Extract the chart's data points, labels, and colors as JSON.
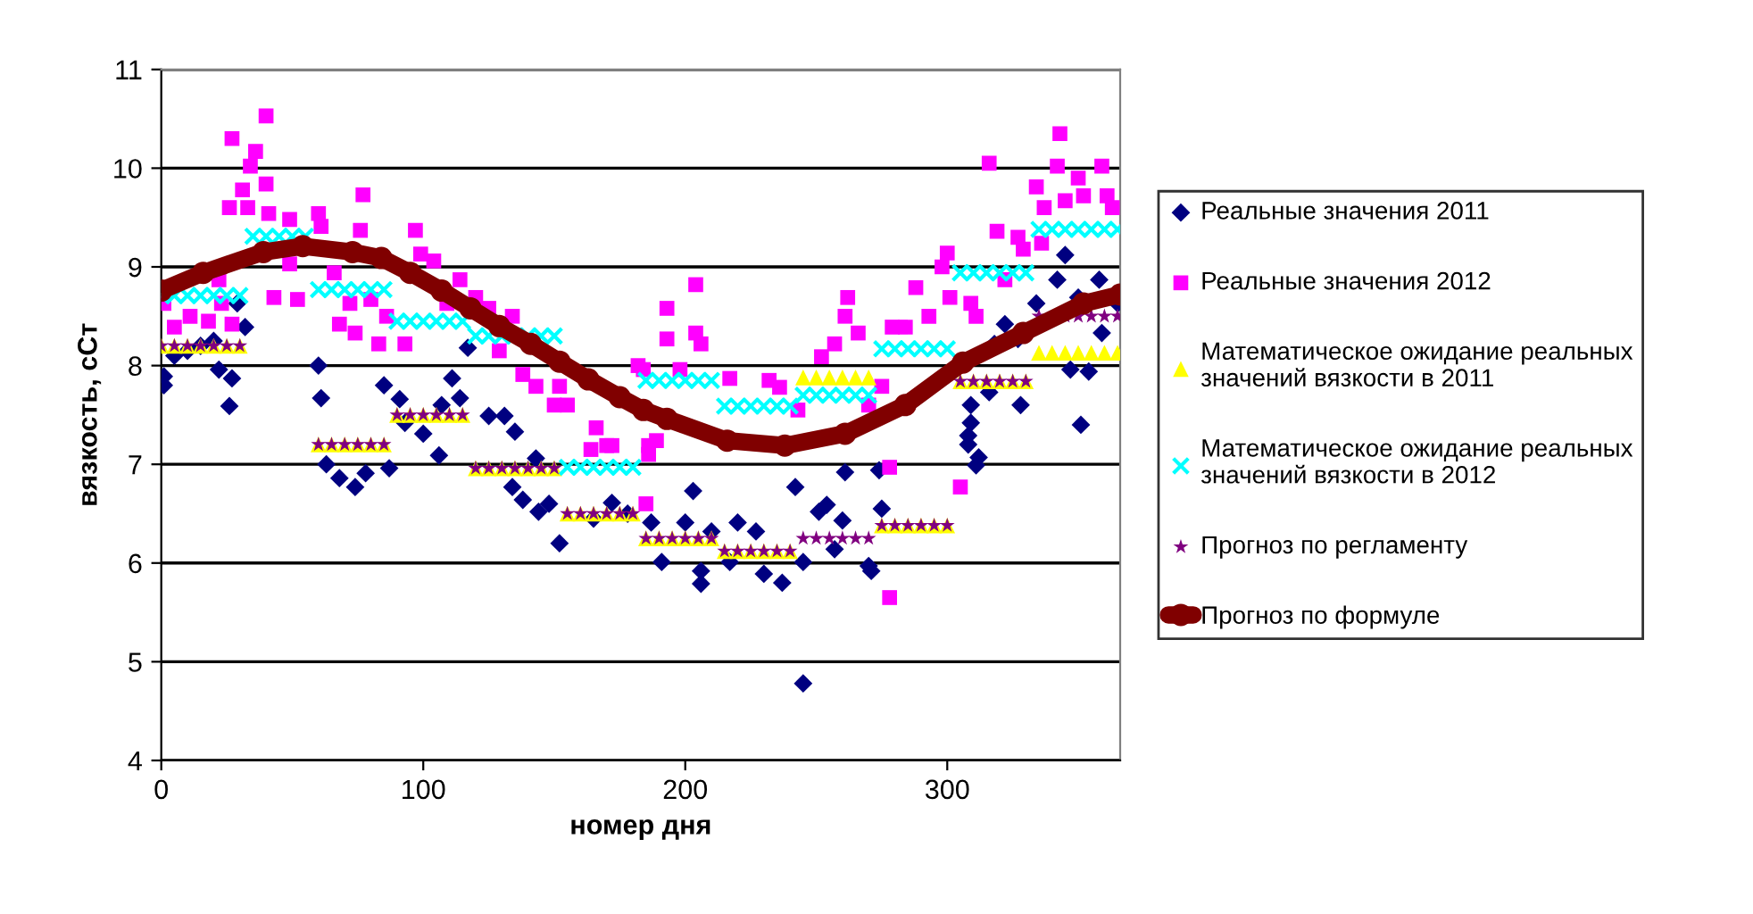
{
  "chart_data": {
    "type": "scatter",
    "xlabel": "номер дня",
    "ylabel": "вязкость, сСт",
    "xlim": [
      0,
      366
    ],
    "ylim": [
      4,
      11
    ],
    "xticks": [
      0,
      100,
      200,
      300
    ],
    "yticks": [
      4,
      5,
      6,
      7,
      8,
      9,
      10,
      11
    ],
    "grid": "y",
    "legend": "right",
    "x": [
      0,
      5,
      10,
      15,
      20,
      25,
      30,
      35,
      40,
      45,
      50,
      55,
      60,
      65,
      70,
      75,
      80,
      85,
      90,
      95,
      100,
      105,
      110,
      115,
      120,
      125,
      130,
      135,
      140,
      145,
      150,
      155,
      160,
      165,
      170,
      175,
      180,
      185,
      190,
      195,
      200,
      205,
      210,
      215,
      220,
      225,
      230,
      235,
      240,
      245,
      250,
      255,
      260,
      265,
      270,
      275,
      280,
      285,
      290,
      295,
      300,
      305,
      310,
      315,
      320,
      325,
      330,
      335,
      340,
      345,
      350,
      355,
      360,
      365
    ],
    "series": [
      {
        "name": "Реальные значения 2011",
        "color": "#000080",
        "marker": "diamond",
        "x": [
          1,
          1,
          5,
          10,
          15,
          20,
          22,
          26,
          27,
          29,
          32,
          60,
          61,
          63,
          68,
          74,
          78,
          85,
          87,
          91,
          93,
          100,
          106,
          107,
          111,
          114,
          117,
          125,
          131,
          134,
          135,
          138,
          143,
          144,
          148,
          152,
          165,
          172,
          178,
          187,
          191,
          200,
          203,
          206,
          206,
          210,
          217,
          220,
          227,
          230,
          237,
          242,
          245,
          245,
          251,
          254,
          257,
          260,
          261,
          270,
          271,
          274,
          275,
          308,
          308,
          309,
          309,
          311,
          312,
          316,
          318,
          322,
          327,
          328,
          334,
          342,
          345,
          347,
          350,
          351,
          354,
          358,
          359,
          365
        ],
        "values": [
          7.89,
          7.8,
          8.1,
          8.15,
          8.2,
          8.25,
          7.96,
          7.59,
          7.87,
          8.63,
          8.39,
          8.0,
          7.67,
          7.0,
          6.86,
          6.77,
          6.91,
          7.8,
          6.96,
          7.66,
          7.42,
          7.31,
          7.09,
          7.6,
          7.87,
          7.67,
          8.18,
          7.49,
          7.49,
          6.77,
          7.33,
          6.64,
          7.06,
          6.52,
          6.6,
          6.2,
          6.45,
          6.61,
          6.5,
          6.41,
          6.01,
          6.41,
          6.73,
          5.92,
          5.79,
          6.32,
          6.01,
          6.41,
          6.32,
          5.89,
          5.8,
          6.77,
          6.01,
          4.78,
          6.52,
          6.59,
          6.14,
          6.43,
          6.92,
          5.97,
          5.92,
          6.94,
          6.55,
          7.29,
          7.2,
          7.42,
          7.6,
          6.99,
          7.07,
          7.73,
          8.22,
          8.42,
          8.27,
          7.6,
          8.63,
          8.87,
          9.12,
          7.96,
          8.69,
          7.4,
          7.94,
          8.87,
          8.33,
          8.63
        ]
      },
      {
        "name": "Реальные значения 2012",
        "color": "#ff00ff",
        "marker": "square",
        "x": [
          1,
          5,
          11,
          18,
          22,
          23,
          26,
          27,
          27,
          31,
          33,
          34,
          36,
          40,
          40,
          41,
          43,
          49,
          49,
          52,
          60,
          61,
          66,
          68,
          72,
          74,
          76,
          77,
          80,
          83,
          86,
          93,
          97,
          99,
          104,
          109,
          114,
          120,
          125,
          129,
          134,
          138,
          143,
          150,
          152,
          155,
          164,
          166,
          170,
          172,
          182,
          184,
          185,
          186,
          186,
          189,
          193,
          193,
          198,
          204,
          204,
          206,
          217,
          232,
          236,
          243,
          252,
          257,
          261,
          262,
          266,
          270,
          275,
          278,
          278,
          279,
          284,
          288,
          293,
          298,
          300,
          301,
          305,
          309,
          311,
          316,
          319,
          322,
          327,
          329,
          334,
          336,
          337,
          342,
          343,
          345,
          350,
          352,
          359,
          361,
          363
        ],
        "values": [
          8.63,
          8.39,
          8.5,
          8.45,
          8.87,
          8.63,
          9.6,
          10.3,
          8.42,
          9.78,
          9.6,
          10.02,
          10.17,
          10.53,
          9.84,
          9.54,
          8.69,
          9.48,
          9.03,
          8.67,
          9.54,
          9.41,
          8.94,
          8.42,
          8.63,
          8.33,
          9.37,
          9.73,
          8.67,
          8.22,
          8.5,
          8.22,
          9.37,
          9.13,
          9.06,
          8.63,
          8.87,
          8.69,
          8.58,
          8.15,
          8.5,
          7.91,
          7.79,
          7.6,
          7.79,
          7.6,
          7.15,
          7.37,
          7.19,
          7.19,
          8.0,
          7.96,
          6.6,
          7.19,
          7.1,
          7.24,
          8.27,
          8.58,
          7.96,
          8.82,
          8.33,
          8.22,
          7.87,
          7.85,
          7.78,
          7.55,
          8.09,
          8.22,
          8.5,
          8.69,
          8.33,
          7.6,
          7.79,
          6.97,
          5.65,
          8.39,
          8.39,
          8.79,
          8.5,
          9.0,
          9.14,
          8.69,
          6.77,
          8.63,
          8.5,
          10.05,
          9.36,
          8.87,
          9.3,
          9.18,
          9.81,
          9.24,
          9.6,
          10.02,
          10.35,
          9.67,
          9.9,
          9.72,
          10.02,
          9.72,
          9.6
        ]
      },
      {
        "name": "Математическое ожидание реальных\nзначений вязкости в 2011",
        "color": "#ffff00",
        "marker": "triangle",
        "values": [
          8.2,
          8.2,
          8.2,
          8.2,
          8.2,
          8.2,
          8.2,
          null,
          null,
          null,
          null,
          null,
          7.2,
          7.2,
          7.2,
          7.2,
          7.2,
          7.2,
          7.5,
          7.5,
          7.5,
          7.5,
          7.5,
          7.5,
          6.96,
          6.96,
          6.96,
          6.96,
          6.96,
          6.96,
          6.96,
          6.5,
          6.5,
          6.5,
          6.5,
          6.5,
          6.5,
          6.25,
          6.25,
          6.25,
          6.25,
          6.25,
          6.25,
          6.12,
          6.12,
          6.12,
          6.12,
          6.12,
          6.12,
          7.88,
          7.88,
          7.88,
          7.88,
          7.88,
          7.88,
          6.38,
          6.38,
          6.38,
          6.38,
          6.38,
          6.38,
          7.84,
          7.84,
          7.84,
          7.84,
          7.84,
          7.84,
          8.13,
          8.13,
          8.13,
          8.13,
          8.13,
          8.13,
          8.13
        ]
      },
      {
        "name": "Математическое ожидание реальных\nзначений вязкости в 2012",
        "color": "#00ffff",
        "marker": "cross",
        "values": [
          8.71,
          8.71,
          8.71,
          8.71,
          8.71,
          8.71,
          8.71,
          9.31,
          9.31,
          9.31,
          9.31,
          9.31,
          8.77,
          8.77,
          8.77,
          8.77,
          8.77,
          8.77,
          8.45,
          8.45,
          8.45,
          8.45,
          8.45,
          8.45,
          8.3,
          8.3,
          8.3,
          8.3,
          8.3,
          8.3,
          8.3,
          6.97,
          6.97,
          6.97,
          6.97,
          6.97,
          6.97,
          7.85,
          7.85,
          7.85,
          7.85,
          7.85,
          7.85,
          7.59,
          7.59,
          7.59,
          7.59,
          7.59,
          7.59,
          7.7,
          7.7,
          7.7,
          7.7,
          7.7,
          7.7,
          8.17,
          8.17,
          8.17,
          8.17,
          8.17,
          8.17,
          8.94,
          8.94,
          8.94,
          8.94,
          8.94,
          8.94,
          9.38,
          9.38,
          9.38,
          9.38,
          9.38,
          9.38,
          9.38
        ]
      },
      {
        "name": "Прогноз по регламенту",
        "color": "#800080",
        "marker": "star",
        "values": [
          8.2,
          8.2,
          8.2,
          8.2,
          8.2,
          8.2,
          8.2,
          null,
          null,
          null,
          null,
          null,
          7.2,
          7.2,
          7.2,
          7.2,
          7.2,
          7.2,
          7.5,
          7.5,
          7.5,
          7.5,
          7.5,
          7.5,
          6.96,
          6.96,
          6.96,
          6.96,
          6.96,
          6.96,
          6.96,
          6.5,
          6.5,
          6.5,
          6.5,
          6.5,
          6.5,
          6.25,
          6.25,
          6.25,
          6.25,
          6.25,
          6.25,
          6.12,
          6.12,
          6.12,
          6.12,
          6.12,
          6.12,
          6.25,
          6.25,
          6.25,
          6.25,
          6.25,
          6.25,
          6.38,
          6.38,
          6.38,
          6.38,
          6.38,
          6.38,
          7.84,
          7.84,
          7.84,
          7.84,
          7.84,
          7.84,
          8.5,
          null,
          8.5,
          8.5,
          8.5,
          8.5,
          8.5
        ]
      },
      {
        "name": "Прогноз по формуле",
        "color": "#800000",
        "type": "line",
        "marker": "circle",
        "x": [
          0,
          16,
          39,
          54,
          73,
          84,
          95,
          107,
          118,
          129,
          141,
          152,
          163,
          175,
          184,
          193,
          216,
          238,
          261,
          284,
          306,
          329,
          352,
          366
        ],
        "values": [
          8.76,
          8.94,
          9.15,
          9.21,
          9.15,
          9.09,
          8.94,
          8.76,
          8.58,
          8.4,
          8.22,
          8.04,
          7.86,
          7.68,
          7.55,
          7.46,
          7.24,
          7.19,
          7.31,
          7.6,
          8.03,
          8.33,
          8.63,
          8.72
        ]
      }
    ]
  }
}
